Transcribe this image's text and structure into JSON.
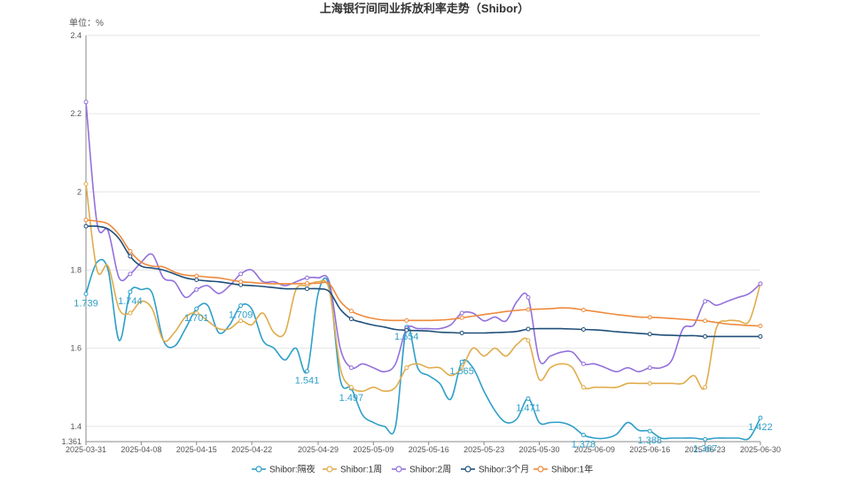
{
  "chart_data": {
    "type": "line",
    "title": "上海银行间同业拆放利率走势（Shibor）",
    "unit_label": "单位：%",
    "ylim": [
      1.361,
      2.4
    ],
    "ytick_values": [
      1.361,
      1.4,
      1.6,
      1.8,
      2,
      2.2,
      2.4
    ],
    "ytick_labels": [
      "1.361",
      "1.4",
      "1.6",
      "1.8",
      "2",
      "2.2",
      "2.4"
    ],
    "grid": true,
    "legend_position": "bottom",
    "x": [
      "2025-03-31",
      "2025-04-01",
      "2025-04-02",
      "2025-04-03",
      "2025-04-07",
      "2025-04-08",
      "2025-04-09",
      "2025-04-10",
      "2025-04-11",
      "2025-04-14",
      "2025-04-15",
      "2025-04-16",
      "2025-04-17",
      "2025-04-18",
      "2025-04-21",
      "2025-04-22",
      "2025-04-23",
      "2025-04-24",
      "2025-04-25",
      "2025-04-27",
      "2025-04-28",
      "2025-04-29",
      "2025-04-30",
      "2025-05-06",
      "2025-05-07",
      "2025-05-08",
      "2025-05-09",
      "2025-05-12",
      "2025-05-13",
      "2025-05-14",
      "2025-05-15",
      "2025-05-16",
      "2025-05-19",
      "2025-05-20",
      "2025-05-21",
      "2025-05-22",
      "2025-05-23",
      "2025-05-26",
      "2025-05-27",
      "2025-05-28",
      "2025-05-29",
      "2025-05-30",
      "2025-06-03",
      "2025-06-04",
      "2025-06-05",
      "2025-06-06",
      "2025-06-09",
      "2025-06-10",
      "2025-06-11",
      "2025-06-12",
      "2025-06-13",
      "2025-06-16",
      "2025-06-17",
      "2025-06-18",
      "2025-06-19",
      "2025-06-20",
      "2025-06-23",
      "2025-06-24",
      "2025-06-25",
      "2025-06-26",
      "2025-06-27",
      "2025-06-30"
    ],
    "xtick_labels": [
      "2025-03-31",
      "2025-04-08",
      "2025-04-15",
      "2025-04-22",
      "2025-04-29",
      "2025-05-09",
      "2025-05-16",
      "2025-05-23",
      "2025-05-30",
      "2025-06-09",
      "2025-06-16",
      "2025-06-23",
      "2025-06-30"
    ],
    "series": [
      {
        "name": "Shibor:隔夜",
        "color": "#2f9fc9",
        "values": [
          1.739,
          1.82,
          1.8,
          1.62,
          1.744,
          1.75,
          1.74,
          1.62,
          1.605,
          1.65,
          1.701,
          1.71,
          1.64,
          1.66,
          1.709,
          1.7,
          1.62,
          1.6,
          1.57,
          1.6,
          1.541,
          1.74,
          1.76,
          1.52,
          1.497,
          1.43,
          1.41,
          1.4,
          1.4,
          1.654,
          1.55,
          1.53,
          1.51,
          1.47,
          1.565,
          1.55,
          1.49,
          1.44,
          1.41,
          1.42,
          1.471,
          1.41,
          1.41,
          1.41,
          1.4,
          1.378,
          1.37,
          1.37,
          1.38,
          1.41,
          1.39,
          1.388,
          1.37,
          1.37,
          1.37,
          1.37,
          1.367,
          1.37,
          1.37,
          1.37,
          1.37,
          1.422
        ],
        "data_labels": {
          "0": "1.739",
          "4": "1.744",
          "10": "1.701",
          "14": "1.709",
          "20": "1.541",
          "24": "1.497",
          "29": "1.654",
          "34": "1.565",
          "40": "1.471",
          "45": "1.378",
          "51": "1.388",
          "56": "1.367",
          "61": "1.422"
        }
      },
      {
        "name": "Shibor:1周",
        "color": "#e0ac4c",
        "values": [
          2.02,
          1.8,
          1.81,
          1.7,
          1.69,
          1.72,
          1.7,
          1.62,
          1.64,
          1.68,
          1.69,
          1.67,
          1.65,
          1.65,
          1.67,
          1.66,
          1.69,
          1.64,
          1.64,
          1.75,
          1.76,
          1.77,
          1.75,
          1.55,
          1.5,
          1.49,
          1.5,
          1.49,
          1.5,
          1.55,
          1.56,
          1.55,
          1.55,
          1.53,
          1.55,
          1.6,
          1.58,
          1.6,
          1.58,
          1.61,
          1.62,
          1.52,
          1.55,
          1.56,
          1.55,
          1.5,
          1.5,
          1.5,
          1.5,
          1.51,
          1.51,
          1.51,
          1.51,
          1.51,
          1.51,
          1.53,
          1.5,
          1.65,
          1.67,
          1.67,
          1.67,
          1.765
        ]
      },
      {
        "name": "Shibor:2周",
        "color": "#9370db",
        "values": [
          2.23,
          1.92,
          1.9,
          1.78,
          1.79,
          1.82,
          1.84,
          1.78,
          1.77,
          1.73,
          1.75,
          1.76,
          1.74,
          1.76,
          1.79,
          1.8,
          1.77,
          1.77,
          1.76,
          1.77,
          1.78,
          1.78,
          1.77,
          1.6,
          1.55,
          1.56,
          1.55,
          1.54,
          1.56,
          1.65,
          1.65,
          1.65,
          1.65,
          1.66,
          1.69,
          1.69,
          1.67,
          1.68,
          1.67,
          1.72,
          1.73,
          1.57,
          1.58,
          1.59,
          1.59,
          1.56,
          1.56,
          1.55,
          1.54,
          1.55,
          1.54,
          1.55,
          1.55,
          1.57,
          1.65,
          1.66,
          1.72,
          1.71,
          1.72,
          1.73,
          1.74,
          1.765
        ]
      },
      {
        "name": "Shibor:3个月",
        "color": "#1f4e79",
        "values": [
          1.912,
          1.912,
          1.905,
          1.88,
          1.835,
          1.81,
          1.805,
          1.8,
          1.79,
          1.78,
          1.775,
          1.772,
          1.77,
          1.766,
          1.762,
          1.76,
          1.758,
          1.755,
          1.752,
          1.752,
          1.752,
          1.752,
          1.745,
          1.7,
          1.675,
          1.666,
          1.659,
          1.654,
          1.648,
          1.646,
          1.645,
          1.644,
          1.641,
          1.64,
          1.639,
          1.639,
          1.639,
          1.64,
          1.641,
          1.643,
          1.649,
          1.65,
          1.65,
          1.65,
          1.649,
          1.648,
          1.647,
          1.645,
          1.642,
          1.64,
          1.638,
          1.636,
          1.634,
          1.633,
          1.632,
          1.632,
          1.63,
          1.63,
          1.63,
          1.63,
          1.63,
          1.63
        ]
      },
      {
        "name": "Shibor:1年",
        "color": "#ee8a3c",
        "values": [
          1.928,
          1.925,
          1.918,
          1.89,
          1.848,
          1.82,
          1.81,
          1.808,
          1.795,
          1.787,
          1.785,
          1.782,
          1.78,
          1.775,
          1.77,
          1.768,
          1.766,
          1.765,
          1.765,
          1.765,
          1.766,
          1.766,
          1.765,
          1.72,
          1.695,
          1.683,
          1.676,
          1.672,
          1.671,
          1.671,
          1.671,
          1.671,
          1.672,
          1.674,
          1.678,
          1.682,
          1.686,
          1.69,
          1.694,
          1.697,
          1.699,
          1.7,
          1.701,
          1.703,
          1.702,
          1.698,
          1.694,
          1.69,
          1.686,
          1.683,
          1.68,
          1.679,
          1.678,
          1.676,
          1.674,
          1.672,
          1.67,
          1.666,
          1.662,
          1.66,
          1.658,
          1.657
        ]
      }
    ]
  }
}
